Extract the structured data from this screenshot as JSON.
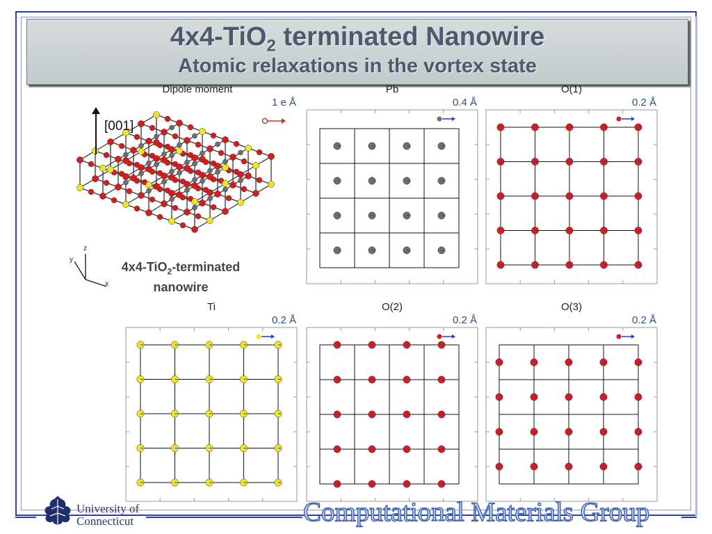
{
  "title": {
    "main_prefix": "4x4-TiO",
    "main_sub": "2",
    "main_suffix": " terminated Nanowire",
    "subtitle": "Atomic relaxations in the vortex state"
  },
  "nanowire": {
    "axis_label": "[001]",
    "label_prefix": "4x4-TiO",
    "label_sub": "2",
    "label_suffix": "-terminated",
    "label_line2": "nanowire",
    "coord_labels": [
      "y",
      "z",
      "x"
    ]
  },
  "panels": [
    {
      "title": "Dipole moment",
      "scale": "1 e Å",
      "atom": "none"
    },
    {
      "title": "Pb",
      "scale": "0.4 Å",
      "atom": "gray"
    },
    {
      "title": "O(1)",
      "scale": "0.2 Å",
      "atom": "red"
    },
    {
      "title": "Ti",
      "scale": "0.2 Å",
      "atom": "yellow"
    },
    {
      "title": "O(2)",
      "scale": "0.2 Å",
      "atom": "red"
    },
    {
      "title": "O(3)",
      "scale": "0.2 Å",
      "atom": "red"
    }
  ],
  "colors": {
    "frame": "#2b3fb5",
    "title_text": "#4b5a6e",
    "atom_red": "#d81b1b",
    "atom_yellow": "#f2e61a",
    "atom_gray": "#6e6e6e",
    "arrow_blue": "#1b3fd1"
  },
  "footer": {
    "university_line1": "University of",
    "university_line2": "Connecticut",
    "group_name": "Computational Materials Group"
  },
  "icons": {
    "logo": "oak-leaf-icon"
  }
}
